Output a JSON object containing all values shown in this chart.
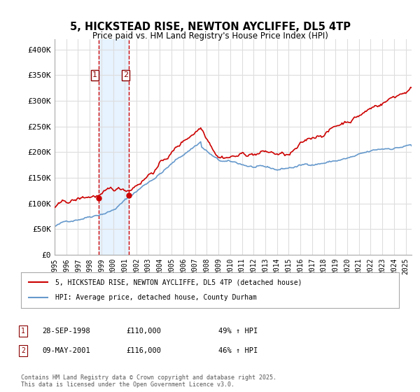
{
  "title": "5, HICKSTEAD RISE, NEWTON AYCLIFFE, DL5 4TP",
  "subtitle": "Price paid vs. HM Land Registry's House Price Index (HPI)",
  "ylabel_ticks": [
    "£0",
    "£50K",
    "£100K",
    "£150K",
    "£200K",
    "£250K",
    "£300K",
    "£350K",
    "£400K"
  ],
  "ytick_values": [
    0,
    50000,
    100000,
    150000,
    200000,
    250000,
    300000,
    350000,
    400000
  ],
  "ylim": [
    0,
    420000
  ],
  "xlim_start": 1995.0,
  "xlim_end": 2025.5,
  "sale1_date": 1998.75,
  "sale1_price": 110000,
  "sale1_label": "1",
  "sale2_date": 2001.36,
  "sale2_price": 116000,
  "sale2_label": "2",
  "line_color_property": "#cc0000",
  "line_color_hpi": "#6699cc",
  "shade_color": "#ddeeff",
  "dashed_color": "#cc0000",
  "legend_label_property": "5, HICKSTEAD RISE, NEWTON AYCLIFFE, DL5 4TP (detached house)",
  "legend_label_hpi": "HPI: Average price, detached house, County Durham",
  "table_rows": [
    {
      "num": "1",
      "date": "28-SEP-1998",
      "price": "£110,000",
      "hpi": "49% ↑ HPI"
    },
    {
      "num": "2",
      "date": "09-MAY-2001",
      "price": "£116,000",
      "hpi": "46% ↑ HPI"
    }
  ],
  "footer": "Contains HM Land Registry data © Crown copyright and database right 2025.\nThis data is licensed under the Open Government Licence v3.0.",
  "background_color": "#ffffff",
  "grid_color": "#dddddd"
}
